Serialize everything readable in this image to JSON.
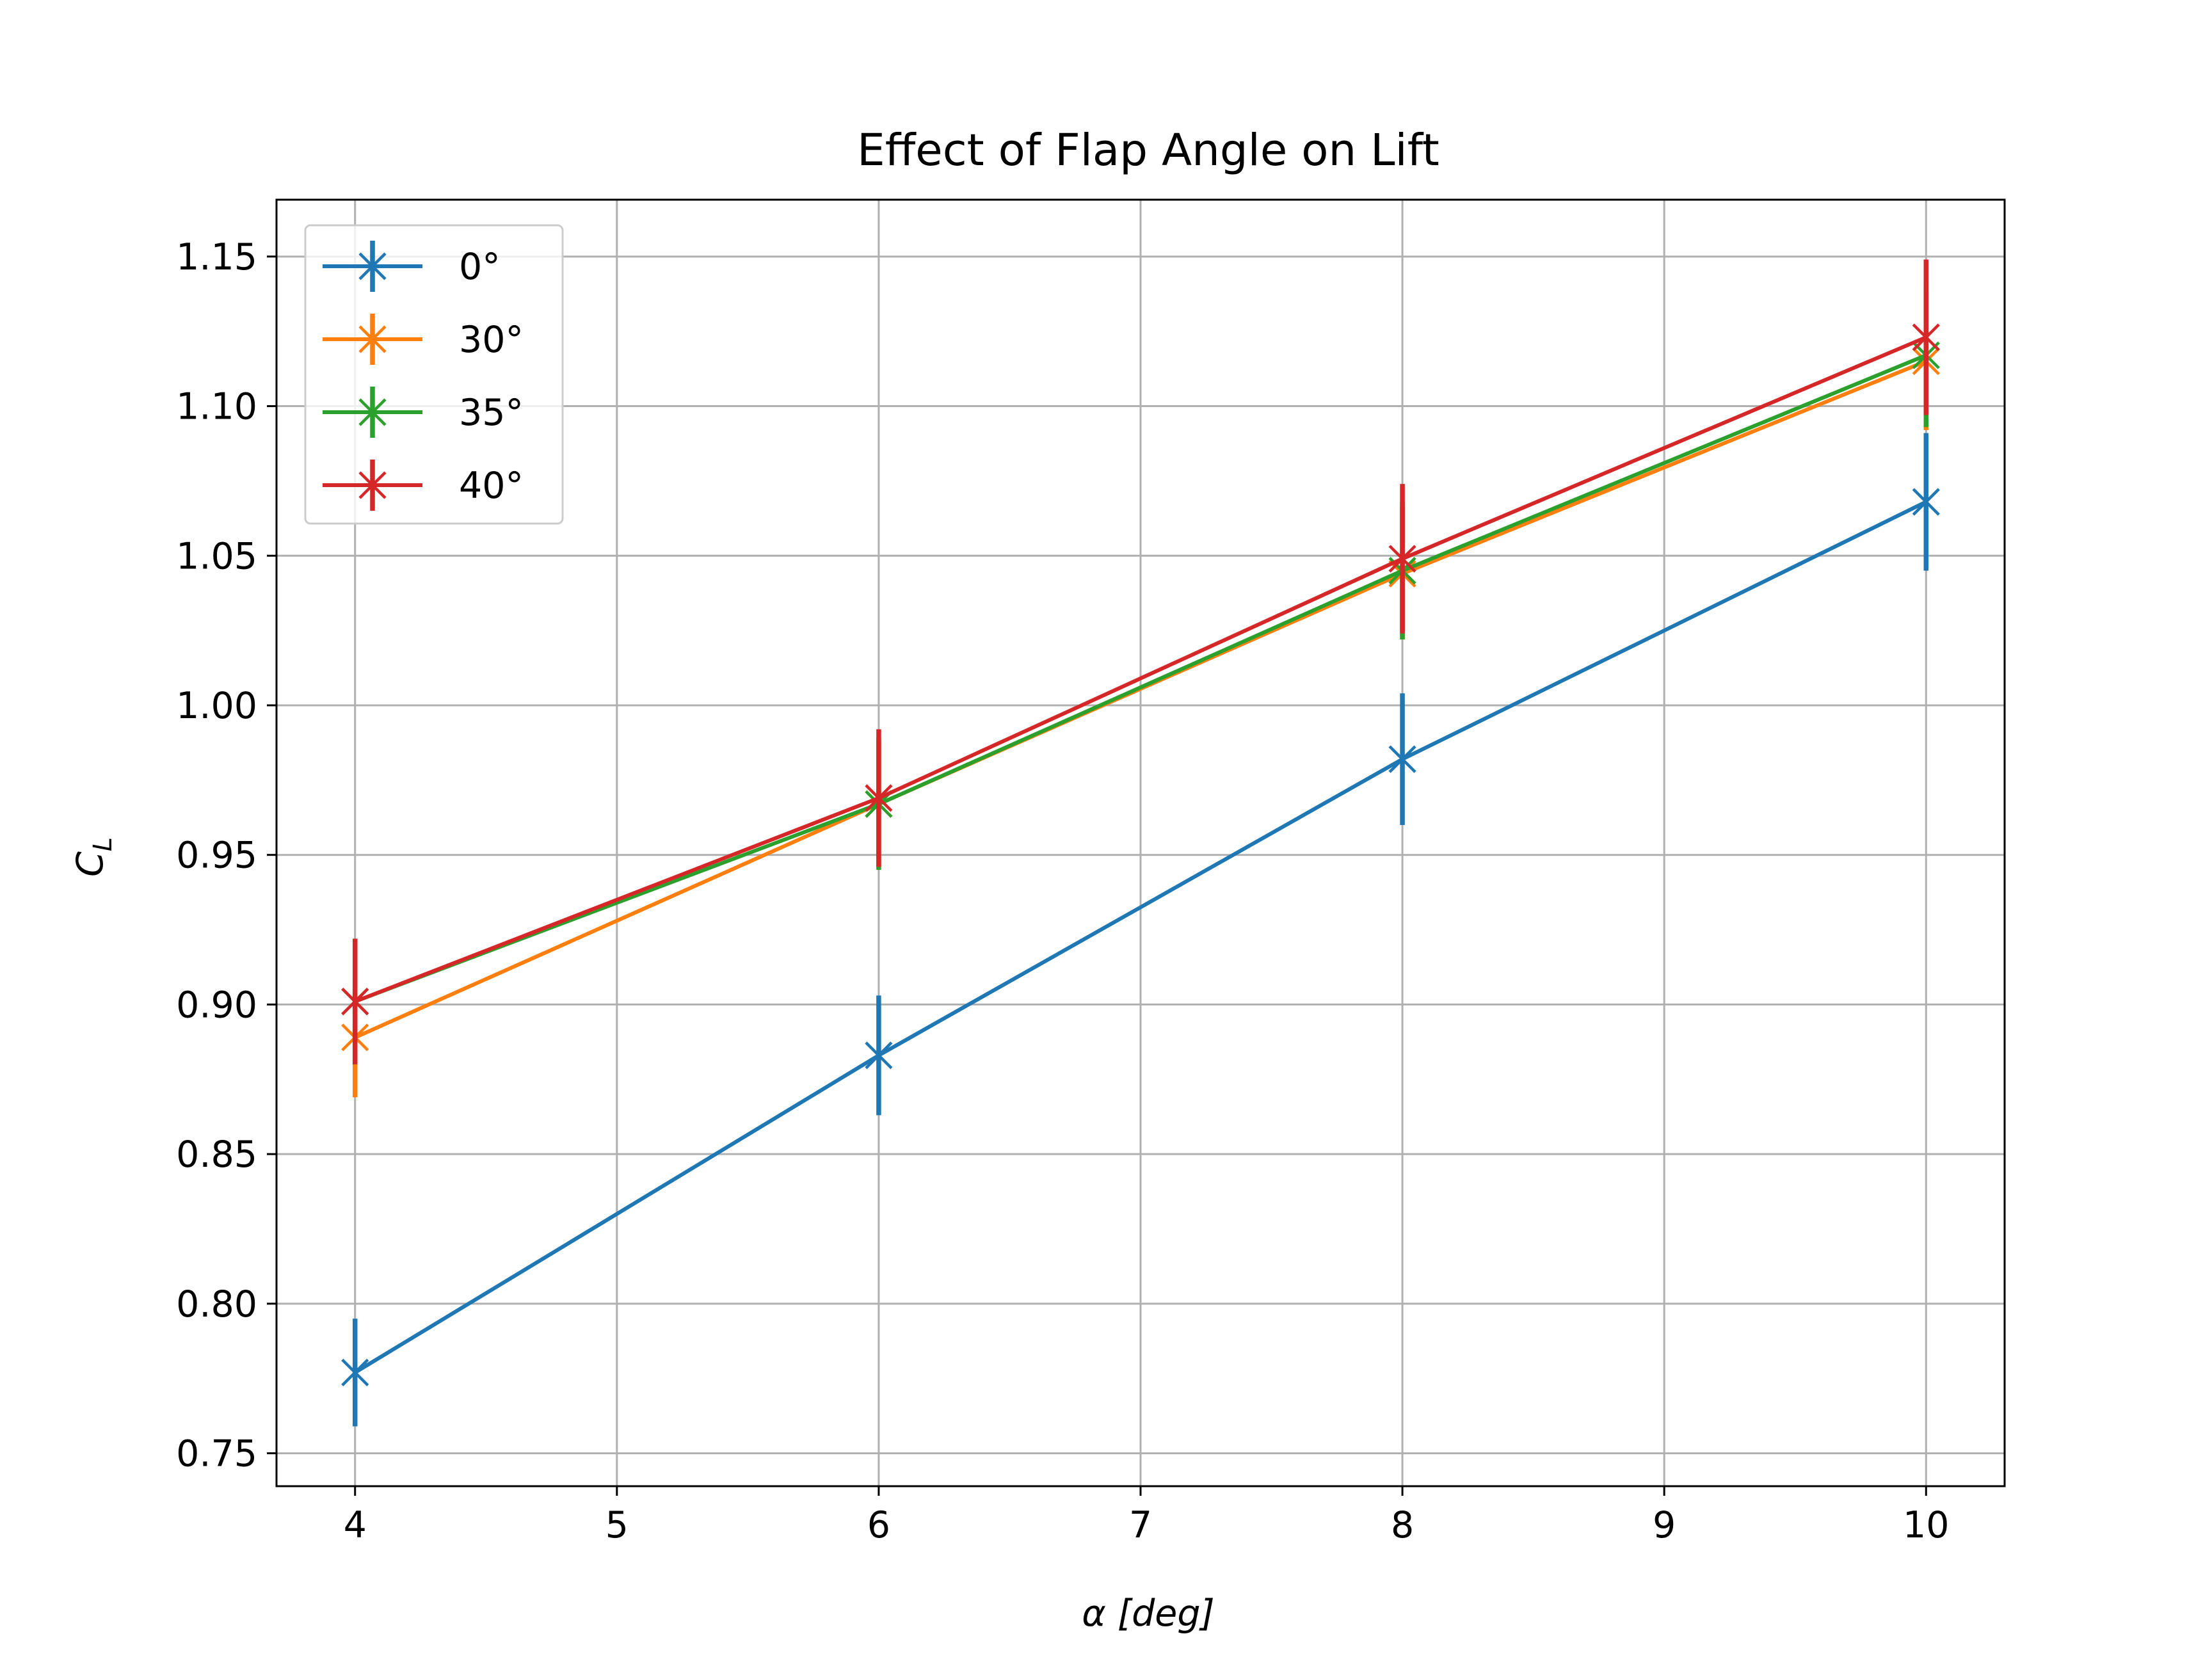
{
  "chart_data": {
    "type": "line",
    "title": "Effect of Flap Angle on Lift",
    "xlabel": "α [deg]",
    "ylabel": "C_L",
    "ylabel_main": "C",
    "ylabel_sub": "L",
    "xlim": [
      3.7,
      10.3
    ],
    "ylim": [
      0.739,
      1.169
    ],
    "x_ticks": [
      4,
      5,
      6,
      7,
      8,
      9,
      10
    ],
    "x_tick_labels": [
      "4",
      "5",
      "6",
      "7",
      "8",
      "9",
      "10"
    ],
    "y_ticks": [
      0.75,
      0.8,
      0.85,
      0.9,
      0.95,
      1.0,
      1.05,
      1.1,
      1.15
    ],
    "y_tick_labels": [
      "0.75",
      "0.80",
      "0.85",
      "0.90",
      "0.95",
      "1.00",
      "1.05",
      "1.10",
      "1.15"
    ],
    "grid": true,
    "legend_position": "upper-left",
    "marker": "x",
    "x": [
      4,
      6,
      8,
      10
    ],
    "series": [
      {
        "name": "0°",
        "color": "#1f77b4",
        "values": [
          0.777,
          0.883,
          0.982,
          1.068
        ],
        "errors": [
          0.018,
          0.02,
          0.022,
          0.023
        ]
      },
      {
        "name": "30°",
        "color": "#ff7f0e",
        "values": [
          0.889,
          0.967,
          1.044,
          1.115
        ],
        "errors": [
          0.02,
          0.021,
          0.022,
          0.023
        ]
      },
      {
        "name": "35°",
        "color": "#2ca02c",
        "values": [
          0.901,
          0.967,
          1.045,
          1.117
        ],
        "errors": [
          0.021,
          0.022,
          0.023,
          0.024
        ]
      },
      {
        "name": "40°",
        "color": "#d62728",
        "values": [
          0.901,
          0.969,
          1.049,
          1.123
        ],
        "errors": [
          0.021,
          0.023,
          0.025,
          0.026
        ]
      }
    ]
  }
}
